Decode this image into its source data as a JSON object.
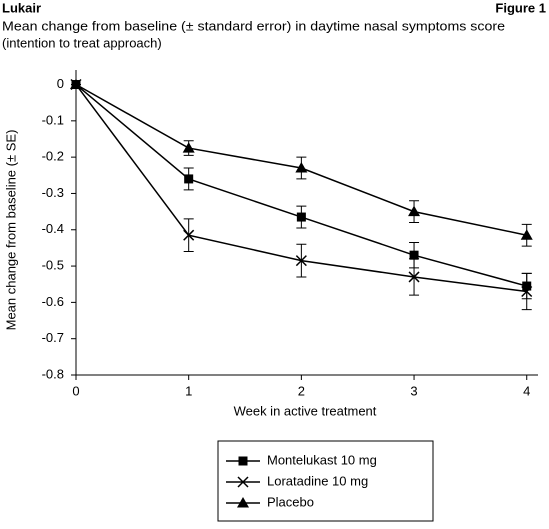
{
  "chart_data": {
    "type": "line",
    "header": "Lukair",
    "figure_label": "Figure 1",
    "subtitle": [
      "Mean change from baseline (± standard error) in daytime nasal symptoms score",
      "(intention to treat approach)"
    ],
    "x_label": "Week in active treatment",
    "y_label": "Mean change from baseline (± SE)",
    "x": [
      0,
      1,
      2,
      3,
      4
    ],
    "series": [
      {
        "name": "Montelukast 10 mg",
        "color": "#000000",
        "marker": "square",
        "values": [
          0,
          -0.26,
          -0.365,
          -0.47,
          -0.555
        ],
        "errors": [
          0,
          0.03,
          0.03,
          0.035,
          0.035
        ]
      },
      {
        "name": "Loratadine 10 mg",
        "color": "#000000",
        "marker": "x",
        "values": [
          0,
          -0.415,
          -0.485,
          -0.53,
          -0.57
        ],
        "errors": [
          0,
          0.045,
          0.045,
          0.05,
          0.05
        ]
      },
      {
        "name": "Placebo",
        "color": "#000000",
        "marker": "triangle",
        "values": [
          0,
          -0.175,
          -0.23,
          -0.35,
          -0.415
        ],
        "errors": [
          0,
          0.02,
          0.03,
          0.03,
          0.03
        ]
      }
    ],
    "xlim": [
      0,
      4.1
    ],
    "xticks": [
      0,
      1,
      2,
      3,
      4
    ],
    "ylim": [
      -0.8,
      0.04
    ],
    "yticks": [
      0,
      -0.1,
      -0.2,
      -0.3,
      -0.4,
      -0.5,
      -0.6,
      -0.7,
      -0.8
    ],
    "grid": false
  }
}
